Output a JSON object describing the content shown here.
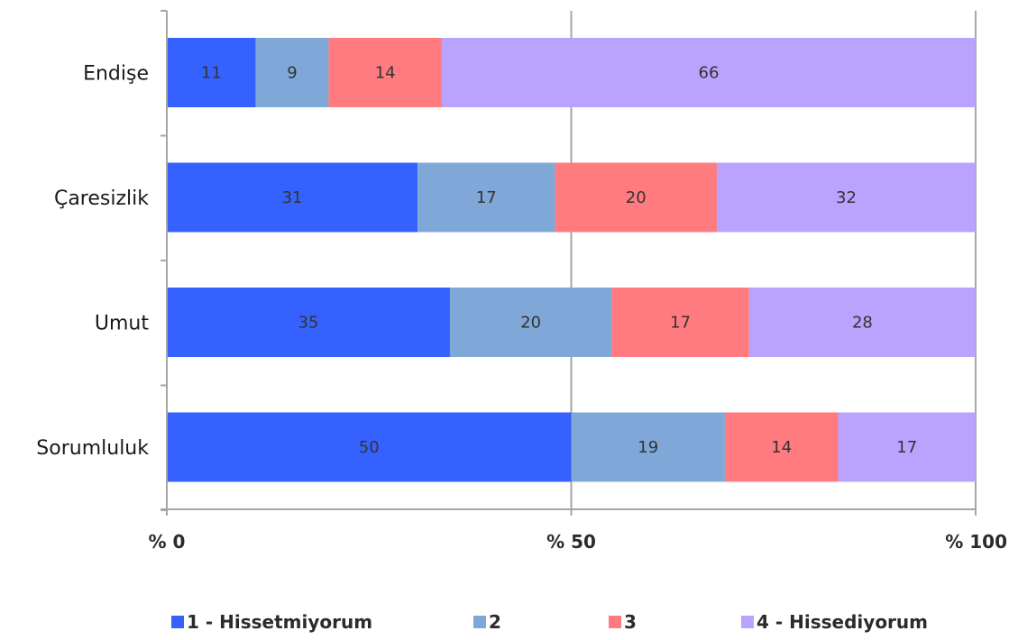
{
  "chart_data": {
    "type": "bar",
    "orientation": "horizontal",
    "stacked": true,
    "categories": [
      "Endişe",
      "Çaresizlik",
      "Umut",
      "Sorumluluk"
    ],
    "series": [
      {
        "name": "1 - Hissetmiyorum",
        "color": "#3562ff",
        "values": [
          11,
          31,
          35,
          50
        ]
      },
      {
        "name": "2",
        "color": "#7fa8d9",
        "values": [
          9,
          17,
          20,
          19
        ]
      },
      {
        "name": "3",
        "color": "#ff7b80",
        "values": [
          14,
          20,
          17,
          14
        ]
      },
      {
        "name": "4 - Hissediyorum",
        "color": "#b9a3ff",
        "values": [
          66,
          32,
          28,
          17
        ]
      }
    ],
    "xlim": [
      0,
      100
    ],
    "xticks": [
      0,
      50,
      100
    ],
    "xtick_labels": [
      "% 0",
      "% 50",
      "% 100"
    ],
    "grid": "vertical",
    "legend": "bottom"
  }
}
